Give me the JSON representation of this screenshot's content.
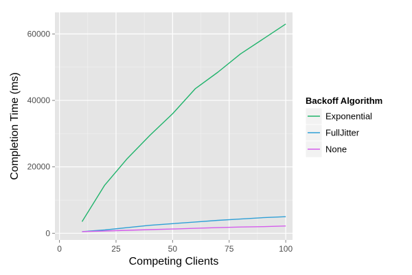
{
  "chart_data": {
    "type": "line",
    "title": "",
    "xlabel": "Competing Clients",
    "ylabel": "Completion Time (ms)",
    "xlim": [
      -2,
      103
    ],
    "ylim": [
      -2000,
      66500
    ],
    "x_ticks": [
      0,
      25,
      50,
      75,
      100
    ],
    "x_tick_labels": [
      "0",
      "25",
      "50",
      "75",
      "100"
    ],
    "y_ticks": [
      0,
      20000,
      40000,
      60000
    ],
    "y_tick_labels": [
      "0",
      "20000",
      "40000",
      "60000"
    ],
    "grid": true,
    "legend": {
      "title": "Backoff Algorithm",
      "position": "right"
    },
    "series": [
      {
        "name": "Exponential",
        "color": "#1fb36b",
        "x": [
          10,
          20,
          30,
          40,
          50,
          60,
          70,
          80,
          90,
          100
        ],
        "y": [
          3500,
          14500,
          22500,
          29500,
          36000,
          43500,
          48500,
          54000,
          58500,
          63000
        ]
      },
      {
        "name": "FullJitter",
        "color": "#2e9fd6",
        "x": [
          10,
          20,
          30,
          40,
          50,
          60,
          70,
          80,
          90,
          100
        ],
        "y": [
          500,
          1000,
          1700,
          2400,
          2900,
          3400,
          3900,
          4300,
          4700,
          5000
        ]
      },
      {
        "name": "None",
        "color": "#d55cec",
        "x": [
          10,
          20,
          30,
          40,
          50,
          60,
          70,
          80,
          90,
          100
        ],
        "y": [
          500,
          700,
          900,
          1100,
          1300,
          1500,
          1700,
          1900,
          2000,
          2200
        ]
      }
    ]
  }
}
